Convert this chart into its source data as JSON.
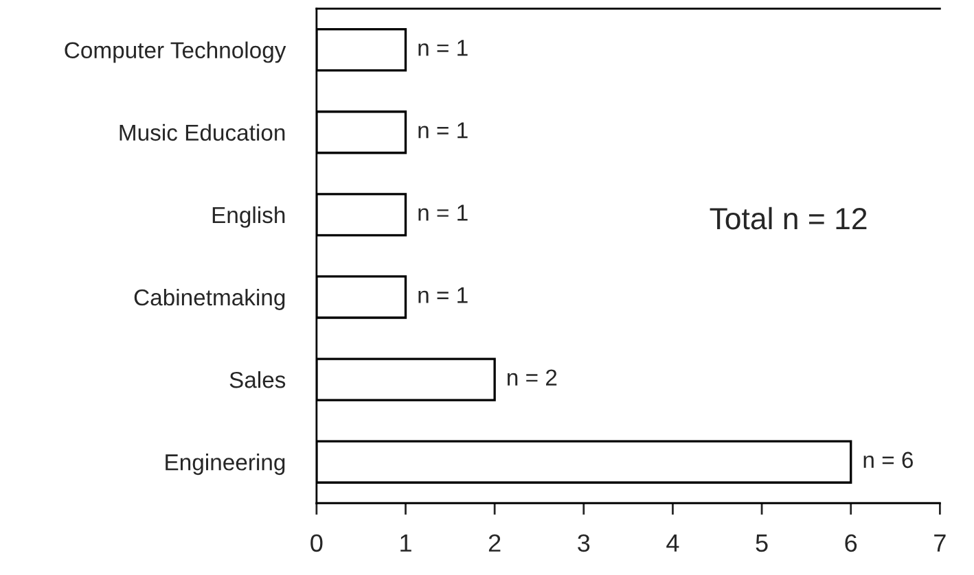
{
  "chart_data": {
    "type": "bar",
    "orientation": "horizontal",
    "categories": [
      "Computer Technology",
      "Music Education",
      "English",
      "Cabinetmaking",
      "Sales",
      "Engineering"
    ],
    "values": [
      1,
      1,
      1,
      1,
      2,
      6
    ],
    "value_labels": [
      "n = 1",
      "n = 1",
      "n = 1",
      "n = 1",
      "n = 2",
      "n = 6"
    ],
    "color": "#ffffff",
    "xlim": [
      0,
      7
    ],
    "xticks": [
      0,
      1,
      2,
      3,
      4,
      5,
      6,
      7
    ],
    "annotations": [
      "Total n = 12"
    ],
    "grid": false,
    "legend": false
  }
}
